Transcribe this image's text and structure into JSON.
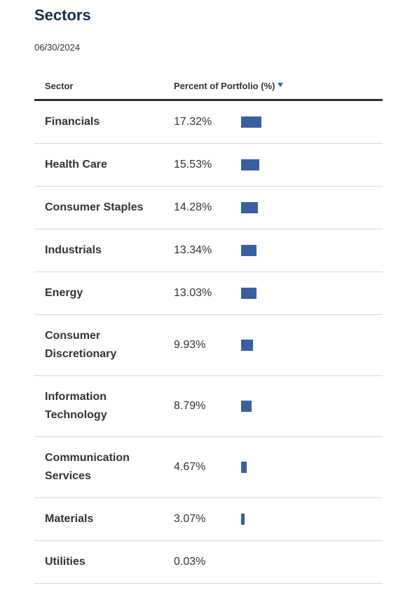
{
  "header": {
    "title": "Sectors",
    "date": "06/30/2024"
  },
  "table": {
    "columns": [
      "Sector",
      "Percent of Portfolio (%)"
    ],
    "rows": [
      {
        "sector": "Financials",
        "value": 17.32,
        "value_label": "17.32%"
      },
      {
        "sector": "Health Care",
        "value": 15.53,
        "value_label": "15.53%"
      },
      {
        "sector": "Consumer Staples",
        "value": 14.28,
        "value_label": "14.28%"
      },
      {
        "sector": "Industrials",
        "value": 13.34,
        "value_label": "13.34%"
      },
      {
        "sector": "Energy",
        "value": 13.03,
        "value_label": "13.03%"
      },
      {
        "sector": "Consumer Discretionary",
        "value": 9.93,
        "value_label": "9.93%"
      },
      {
        "sector": "Information Technology",
        "value": 8.79,
        "value_label": "8.79%"
      },
      {
        "sector": "Communication Services",
        "value": 4.67,
        "value_label": "4.67%"
      },
      {
        "sector": "Materials",
        "value": 3.07,
        "value_label": "3.07%"
      },
      {
        "sector": "Utilities",
        "value": 0.03,
        "value_label": "0.03%"
      }
    ]
  }
}
